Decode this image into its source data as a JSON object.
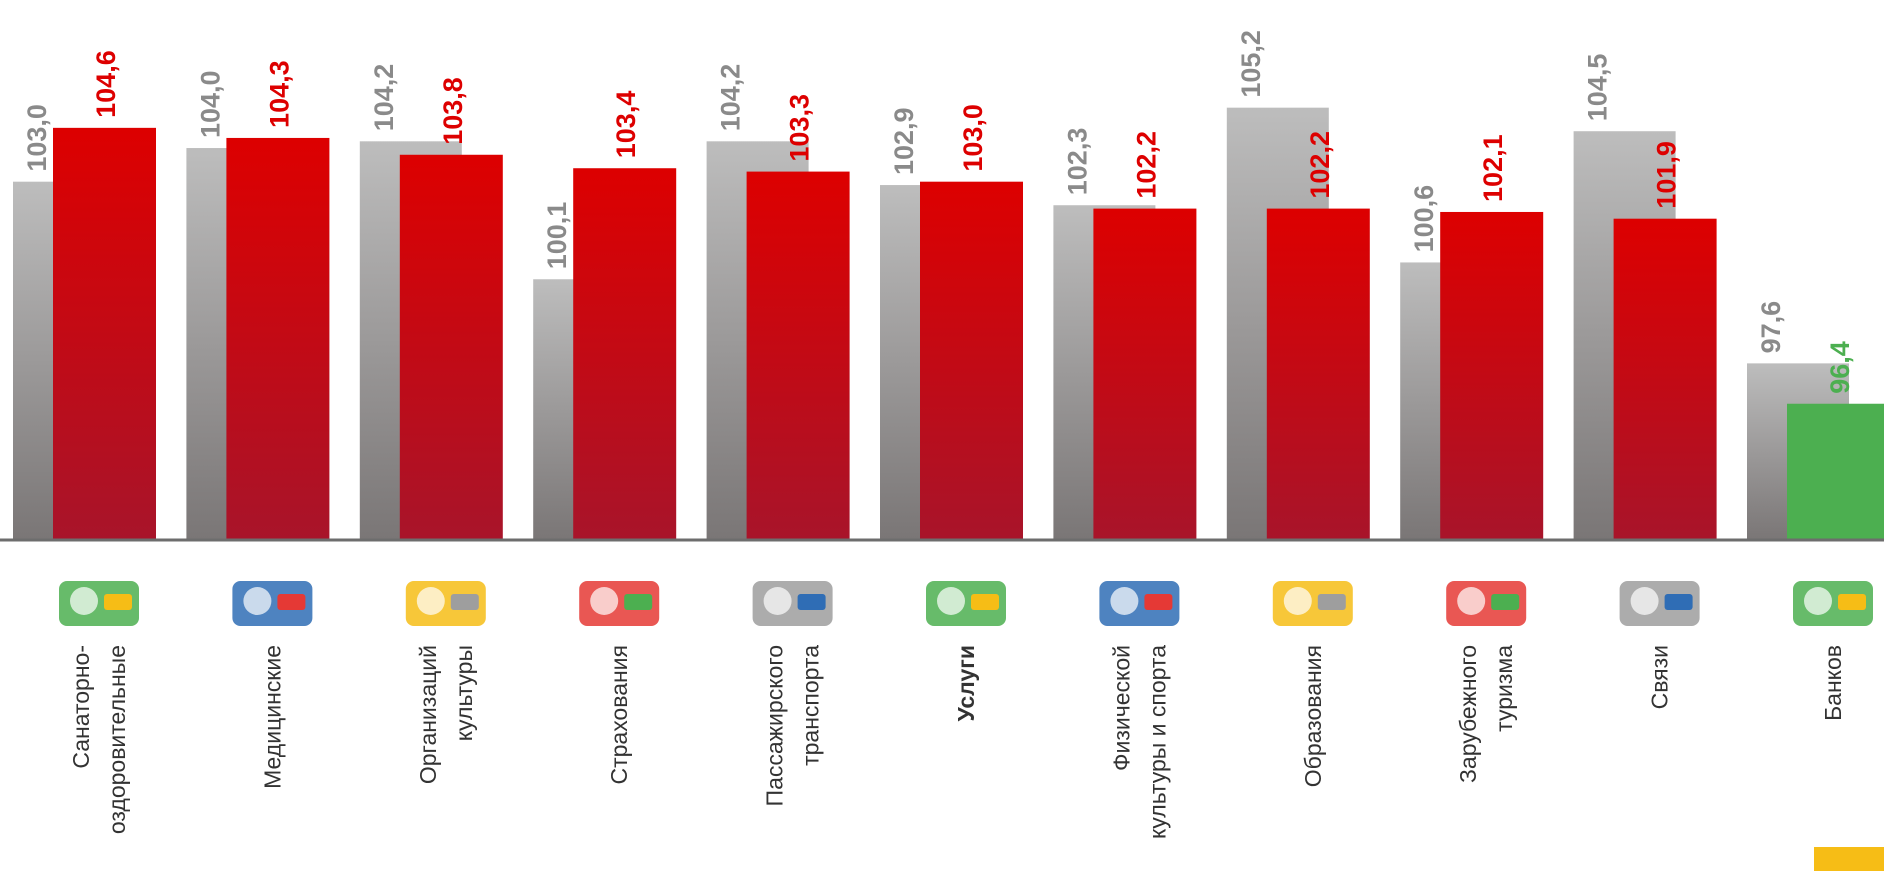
{
  "chart_data": {
    "type": "bar",
    "categories": [
      [
        "Санаторно-",
        "оздоровительные"
      ],
      [
        "Медицинские"
      ],
      [
        "Организаций",
        "культуры"
      ],
      [
        "Страхования"
      ],
      [
        "Пассажирского",
        "транспорта"
      ],
      [
        "Услуги"
      ],
      [
        "Физической",
        "культуры и спорта"
      ],
      [
        "Образования"
      ],
      [
        "Зарубежного",
        "туризма"
      ],
      [
        "Связи"
      ],
      [
        "Банков"
      ]
    ],
    "bold_category": 5,
    "ylim": [
      92.35,
      108.4
    ],
    "series": [
      {
        "color": "#bdbdbd",
        "values": [
          103.0,
          104.0,
          104.2,
          100.1,
          104.2,
          102.9,
          102.3,
          105.2,
          100.6,
          104.5,
          97.6
        ],
        "value_labels": [
          "103,0",
          "104,0",
          "104,2",
          "100,1",
          "104,2",
          "102,9",
          "102,3",
          "105,2",
          "100,6",
          "104,5",
          "97,6"
        ],
        "label_color": "#8a8a8a"
      },
      {
        "color": "#dd0000",
        "colors": [
          "#dd0000",
          "#dd0000",
          "#dd0000",
          "#dd0000",
          "#dd0000",
          "#dd0000",
          "#dd0000",
          "#dd0000",
          "#dd0000",
          "#dd0000",
          "#4caf50"
        ],
        "values": [
          104.6,
          104.3,
          103.8,
          103.4,
          103.3,
          103.0,
          102.2,
          102.2,
          102.1,
          101.9,
          96.4
        ],
        "value_labels": [
          "104,6",
          "104,3",
          "103,8",
          "103,4",
          "103,3",
          "103,0",
          "102,2",
          "102,2",
          "102,1",
          "101,9",
          "96,4"
        ]
      }
    ]
  }
}
